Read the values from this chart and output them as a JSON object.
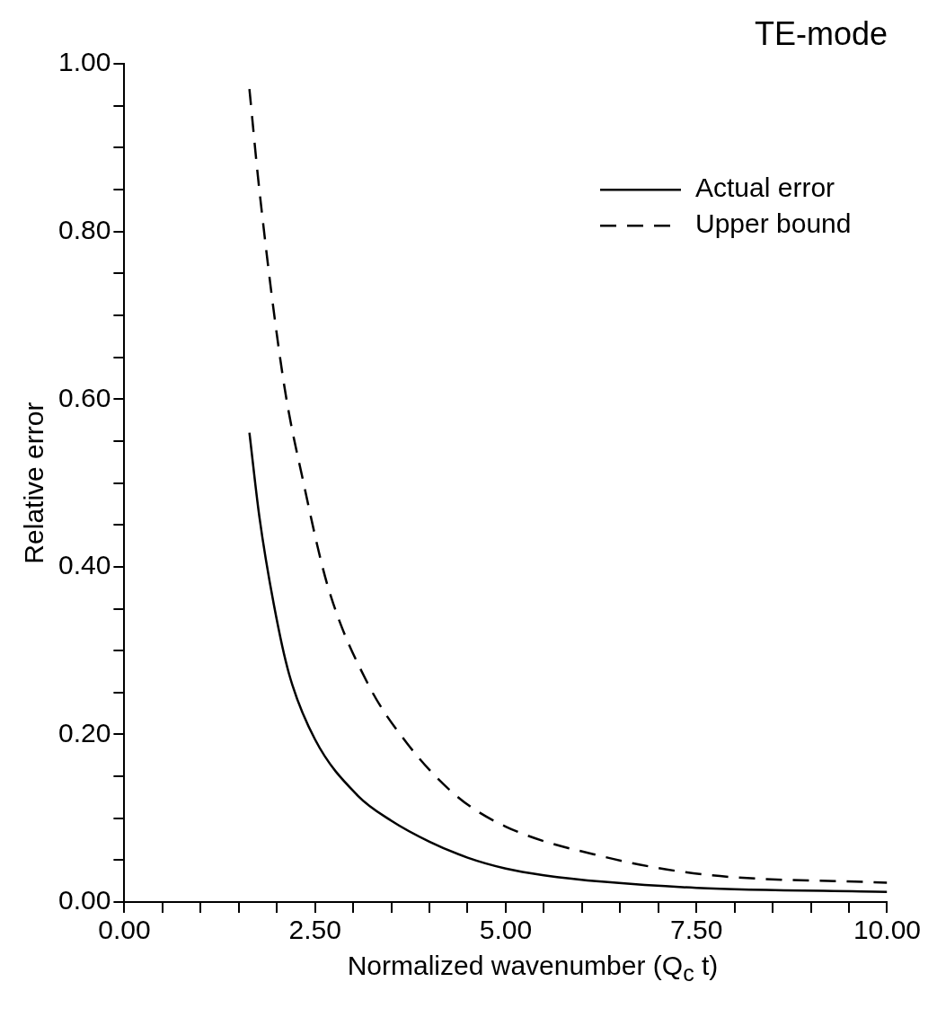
{
  "chart_data": {
    "type": "line",
    "title": "TE-mode",
    "xlabel": "Normalized wavenumber (Q$_{c}$ t)",
    "ylabel": "Relative error",
    "series": [
      {
        "name": "Actual error",
        "color": "#000000",
        "line_style": "solid",
        "x": [
          1.64,
          1.77,
          1.96,
          2.16,
          2.5,
          3.06,
          3.5,
          4.0,
          4.5,
          5.0,
          5.5,
          6.3,
          7.5,
          10.0
        ],
        "values": [
          0.56,
          0.46,
          0.355,
          0.272,
          0.194,
          0.127,
          0.097,
          0.072,
          0.053,
          0.04,
          0.032,
          0.024,
          0.017,
          0.012
        ]
      },
      {
        "name": "Upper bound",
        "color": "#000000",
        "line_style": "dashed",
        "x": [
          1.64,
          1.77,
          2.09,
          2.35,
          2.67,
          3.19,
          3.71,
          4.35,
          5.0,
          6.29,
          7.58,
          10.0
        ],
        "values": [
          0.97,
          0.85,
          0.62,
          0.5,
          0.376,
          0.261,
          0.189,
          0.127,
          0.09,
          0.054,
          0.033,
          0.023
        ]
      }
    ],
    "xlim": [
      0,
      10
    ],
    "ylim": [
      0,
      1
    ],
    "xticks": [
      {
        "value": 0,
        "label": "0.00"
      },
      {
        "value": 0.5,
        "label": null
      },
      {
        "value": 1,
        "label": null
      },
      {
        "value": 1.5,
        "label": null
      },
      {
        "value": 2,
        "label": null
      },
      {
        "value": 2.5,
        "label": "2.50"
      },
      {
        "value": 3,
        "label": null
      },
      {
        "value": 3.5,
        "label": null
      },
      {
        "value": 4,
        "label": null
      },
      {
        "value": 4.5,
        "label": null
      },
      {
        "value": 5,
        "label": "5.00"
      },
      {
        "value": 5.5,
        "label": null
      },
      {
        "value": 6,
        "label": null
      },
      {
        "value": 6.5,
        "label": null
      },
      {
        "value": 7,
        "label": null
      },
      {
        "value": 7.5,
        "label": "7.50"
      },
      {
        "value": 8,
        "label": null
      },
      {
        "value": 8.5,
        "label": null
      },
      {
        "value": 9,
        "label": null
      },
      {
        "value": 9.5,
        "label": null
      },
      {
        "value": 10,
        "label": "10.00"
      }
    ],
    "yticks": [
      {
        "value": 0,
        "label": "0.00"
      },
      {
        "value": 0.05,
        "label": null
      },
      {
        "value": 0.1,
        "label": null
      },
      {
        "value": 0.15,
        "label": null
      },
      {
        "value": 0.2,
        "label": "0.20"
      },
      {
        "value": 0.25,
        "label": null
      },
      {
        "value": 0.3,
        "label": null
      },
      {
        "value": 0.35,
        "label": null
      },
      {
        "value": 0.4,
        "label": "0.40"
      },
      {
        "value": 0.45,
        "label": null
      },
      {
        "value": 0.5,
        "label": null
      },
      {
        "value": 0.55,
        "label": null
      },
      {
        "value": 0.6,
        "label": "0.60"
      },
      {
        "value": 0.65,
        "label": null
      },
      {
        "value": 0.7,
        "label": null
      },
      {
        "value": 0.75,
        "label": null
      },
      {
        "value": 0.8,
        "label": "0.80"
      },
      {
        "value": 0.85,
        "label": null
      },
      {
        "value": 0.9,
        "label": null
      },
      {
        "value": 0.95,
        "label": null
      },
      {
        "value": 1,
        "label": "1.00"
      }
    ],
    "grid": false,
    "legend": "top right",
    "marker": "none"
  }
}
